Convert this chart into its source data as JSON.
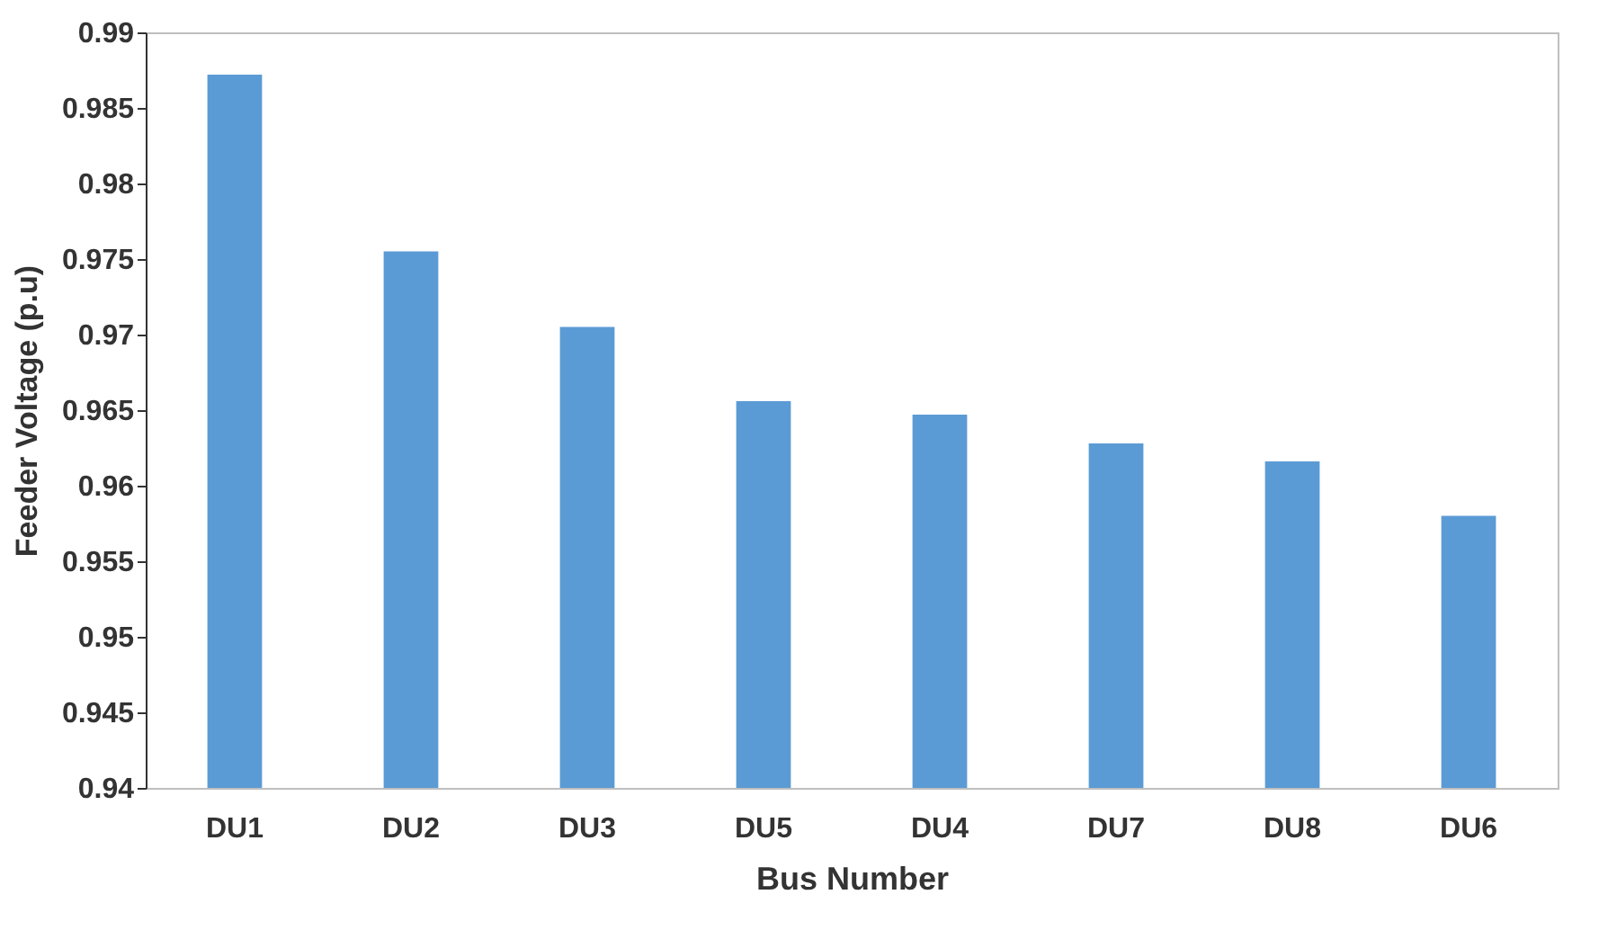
{
  "chart_data": {
    "type": "bar",
    "xlabel": "Bus Number",
    "ylabel": "Feeder Voltage  (p.u)",
    "categories": [
      "DU1",
      "DU2",
      "DU3",
      "DU5",
      "DU4",
      "DU7",
      "DU8",
      "DU6"
    ],
    "values": [
      0.9872,
      0.9755,
      0.9705,
      0.9656,
      0.9647,
      0.9628,
      0.9616,
      0.958
    ],
    "color": "#5b9bd5",
    "ylim": [
      0.94,
      0.99
    ],
    "yticks": [
      0.94,
      0.945,
      0.95,
      0.955,
      0.96,
      0.965,
      0.97,
      0.975,
      0.98,
      0.985,
      0.99
    ],
    "grid": false
  }
}
